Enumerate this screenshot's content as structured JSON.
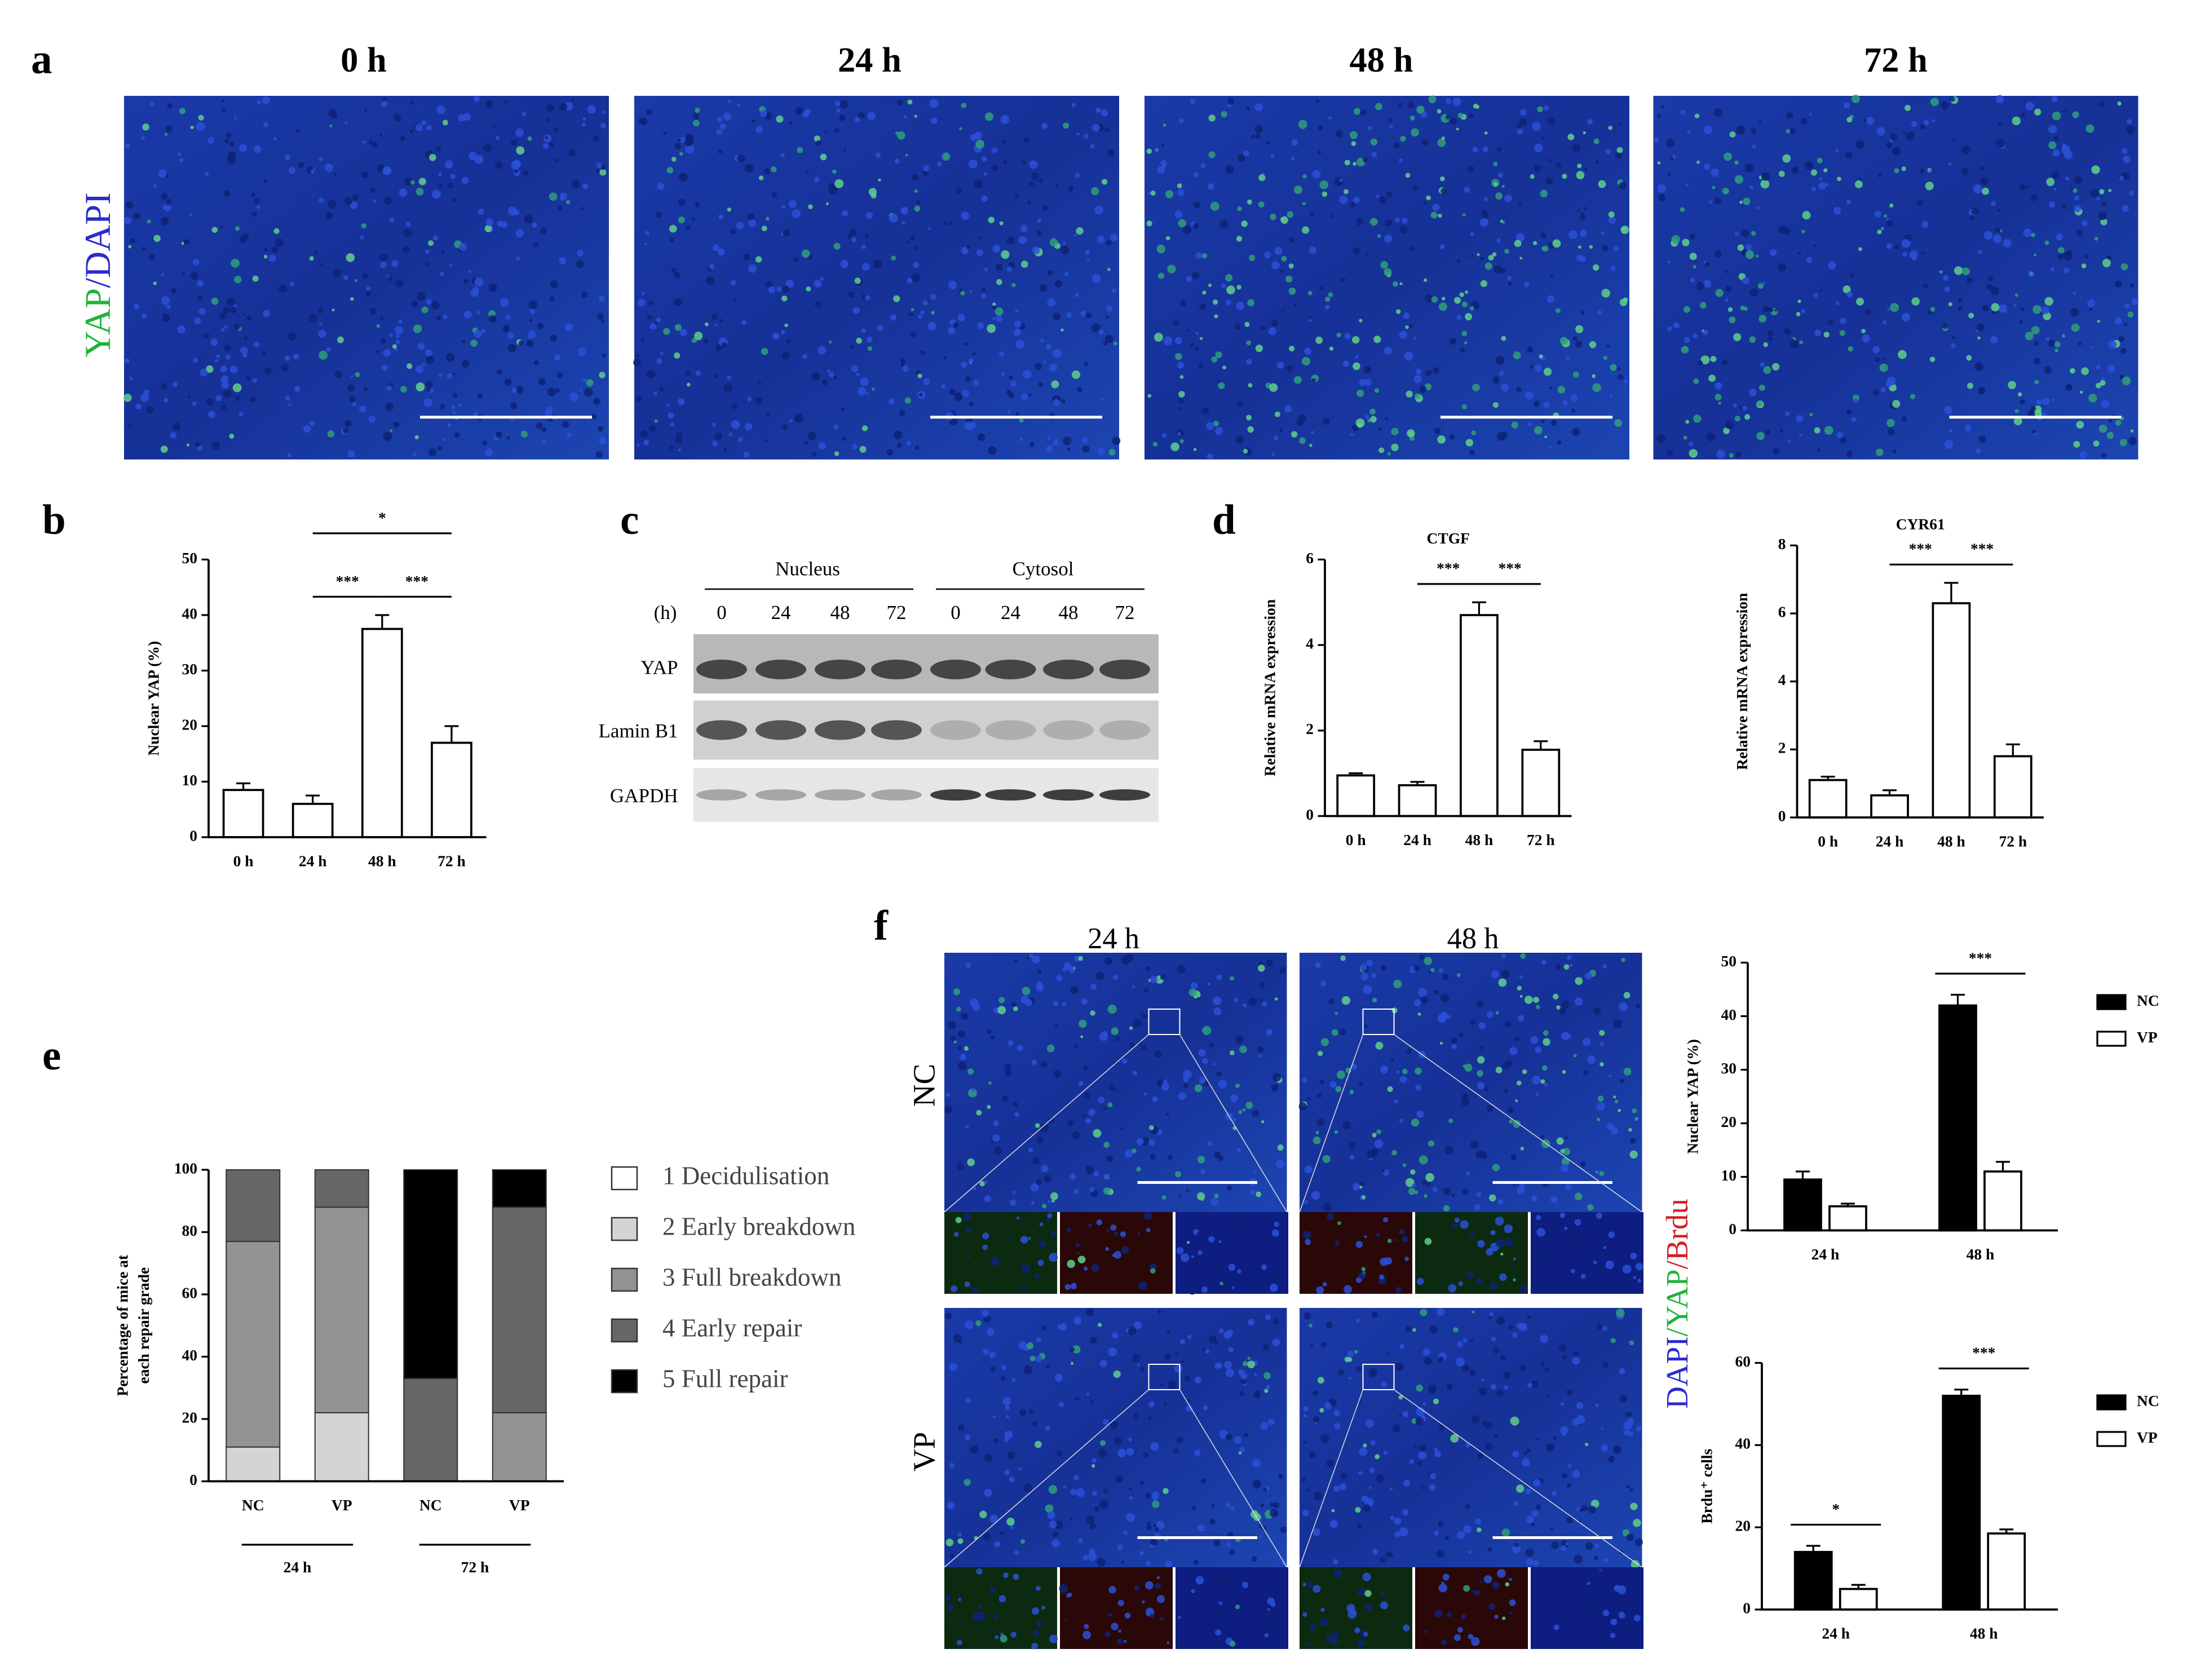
{
  "panel_labels": [
    "a",
    "b",
    "c",
    "d",
    "e",
    "f"
  ],
  "panel_a": {
    "titles": [
      "0 h",
      "24 h",
      "48 h",
      "72 h"
    ],
    "stain_label": [
      "YAP",
      "/DAPI"
    ]
  },
  "panel_c": {
    "groups": [
      "Nucleus",
      "Cytosol"
    ],
    "unit": "(h)",
    "lanes": [
      "0",
      "24",
      "48",
      "72",
      "0",
      "24",
      "48",
      "72"
    ],
    "rows": [
      "YAP",
      "Lamin B1",
      "GAPDH"
    ]
  },
  "panel_f": {
    "columns": [
      "24 h",
      "48 h"
    ],
    "rows": [
      "NC",
      "VP"
    ],
    "stain_label": [
      "DAPI",
      "/YAP",
      "/Brdu"
    ]
  },
  "chart_data": [
    {
      "type": "bar",
      "ylabel": "Nuclear YAP (%)",
      "categories": [
        "0 h",
        "24 h",
        "48 h",
        "72 h"
      ],
      "values": [
        8.5,
        6,
        37.5,
        17
      ],
      "errors": [
        1.2,
        1.5,
        2.5,
        3
      ],
      "color": "#ffffff",
      "ylim": [
        0,
        50
      ],
      "yticks": [
        0,
        10,
        20,
        30,
        40,
        50
      ],
      "significance": [
        {
          "label": "***",
          "between": [
            "24 h",
            "48 h"
          ]
        },
        {
          "label": "***",
          "between": [
            "48 h",
            "72 h"
          ]
        },
        {
          "label": "*",
          "between": [
            "24 h",
            "72 h"
          ]
        }
      ]
    },
    {
      "type": "bar",
      "title": "CTGF",
      "ylabel": "Relative mRNA expression",
      "categories": [
        "0 h",
        "24 h",
        "48 h",
        "72 h"
      ],
      "values": [
        0.95,
        0.72,
        4.7,
        1.55
      ],
      "errors": [
        0.05,
        0.08,
        0.3,
        0.2
      ],
      "color": "#ffffff",
      "ylim": [
        0,
        6
      ],
      "yticks": [
        0,
        2,
        4,
        6
      ],
      "significance": [
        {
          "label": "***",
          "between": [
            "24 h",
            "48 h"
          ]
        },
        {
          "label": "***",
          "between": [
            "48 h",
            "72 h"
          ]
        }
      ]
    },
    {
      "type": "bar",
      "title": "CYR61",
      "ylabel": "Relative mRNA expression",
      "categories": [
        "0 h",
        "24 h",
        "48 h",
        "72 h"
      ],
      "values": [
        1.1,
        0.65,
        6.3,
        1.8
      ],
      "errors": [
        0.1,
        0.15,
        0.6,
        0.35
      ],
      "color": "#ffffff",
      "ylim": [
        0,
        8
      ],
      "yticks": [
        0,
        2,
        4,
        6,
        8
      ],
      "significance": [
        {
          "label": "***",
          "between": [
            "24 h",
            "48 h"
          ]
        },
        {
          "label": "***",
          "between": [
            "48 h",
            "72 h"
          ]
        }
      ]
    },
    {
      "type": "stacked_bar",
      "ylabel_lines": [
        "Percentage of mice at",
        "each repair grade"
      ],
      "categories": [
        "NC",
        "VP",
        "NC",
        "VP"
      ],
      "groups": [
        "24 h",
        "72 h"
      ],
      "ylim": [
        0,
        100
      ],
      "yticks": [
        0,
        20,
        40,
        60,
        80,
        100
      ],
      "series": [
        {
          "name": "1 Decidulisation",
          "color": "#ffffff",
          "values": [
            0,
            0,
            0,
            0
          ]
        },
        {
          "name": "2 Early breakdown",
          "color": "#d4d4d4",
          "values": [
            11,
            22,
            0,
            0
          ]
        },
        {
          "name": "3 Full breakdown",
          "color": "#939393",
          "values": [
            66,
            66,
            0,
            22
          ]
        },
        {
          "name": "4 Early repair",
          "color": "#666666",
          "values": [
            23,
            12,
            33,
            66
          ]
        },
        {
          "name": "5 Full repair",
          "color": "#000000",
          "values": [
            0,
            0,
            67,
            12
          ]
        }
      ]
    },
    {
      "type": "grouped_bar",
      "ylabel": "Nuclear YAP (%)",
      "categories": [
        "24 h",
        "48 h"
      ],
      "ylim": [
        0,
        50
      ],
      "yticks": [
        0,
        10,
        20,
        30,
        40,
        50
      ],
      "series": [
        {
          "name": "NC",
          "color": "#000000",
          "values": [
            9.5,
            42
          ],
          "errors": [
            1.5,
            2
          ]
        },
        {
          "name": "VP",
          "color": "#ffffff",
          "values": [
            4.5,
            11
          ],
          "errors": [
            0.5,
            1.8
          ]
        }
      ],
      "significance": [
        {
          "label": "***",
          "category": "48 h"
        }
      ]
    },
    {
      "type": "grouped_bar",
      "ylabel": "Brdu⁺ cells",
      "categories": [
        "24 h",
        "48 h"
      ],
      "ylim": [
        0,
        60
      ],
      "yticks": [
        0,
        20,
        40,
        60
      ],
      "series": [
        {
          "name": "NC",
          "color": "#000000",
          "values": [
            14,
            52
          ],
          "errors": [
            1.5,
            1.5
          ]
        },
        {
          "name": "VP",
          "color": "#ffffff",
          "values": [
            5,
            18.5
          ],
          "errors": [
            1,
            1
          ]
        }
      ],
      "significance": [
        {
          "label": "*",
          "category": "24 h"
        },
        {
          "label": "***",
          "category": "48 h"
        }
      ]
    }
  ]
}
